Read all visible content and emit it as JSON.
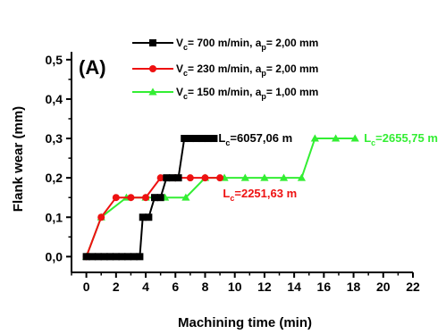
{
  "chart_data": {
    "type": "line",
    "panel_label": "(A)",
    "xlabel": "Machining time (min)",
    "ylabel": "Flank wear (mm)",
    "xlim": [
      -1,
      22
    ],
    "ylim": [
      -0.04,
      0.52
    ],
    "x_ticks": [
      "0",
      "2",
      "4",
      "6",
      "8",
      "10",
      "12",
      "14",
      "16",
      "18",
      "20",
      "22"
    ],
    "y_ticks": [
      "0,0",
      "0,1",
      "0,2",
      "0,3",
      "0,4",
      "0,5"
    ],
    "grid": false,
    "legend_position": "top-left",
    "series": [
      {
        "legend": {
          "v": "V",
          "v_sub": "c",
          "v_rest": "= 700 m/min, a",
          "a_sub": "p",
          "a_rest": "= 2,00 mm"
        },
        "color": "#000000",
        "marker": "square",
        "x": [
          0,
          0.4,
          0.8,
          1.2,
          1.6,
          2.0,
          2.4,
          2.8,
          3.2,
          3.6,
          3.8,
          4.2,
          4.6,
          5.0,
          5.4,
          5.8,
          6.2,
          6.6,
          7.0,
          7.4,
          7.8,
          8.2,
          8.6
        ],
        "y": [
          0,
          0,
          0,
          0,
          0,
          0,
          0,
          0,
          0,
          0,
          0.1,
          0.1,
          0.15,
          0.15,
          0.2,
          0.2,
          0.2,
          0.3,
          0.3,
          0.3,
          0.3,
          0.3,
          0.3
        ],
        "annotation": {
          "main": "L",
          "sub": "c",
          "rest": "=6057,06 m",
          "x": 8.9,
          "y": 0.3
        }
      },
      {
        "legend": {
          "v": "V",
          "v_sub": "c",
          "v_rest": "= 230 m/min, a",
          "a_sub": "p",
          "a_rest": "= 2,00 mm"
        },
        "color": "#ee1111",
        "marker": "circle",
        "x": [
          0,
          1.0,
          2.0,
          3.0,
          4.0,
          5.0,
          6.0,
          7.0,
          8.0,
          9.0
        ],
        "y": [
          0,
          0.1,
          0.15,
          0.15,
          0.15,
          0.2,
          0.2,
          0.2,
          0.2,
          0.2
        ],
        "annotation": {
          "main": "L",
          "sub": "c",
          "rest": "=2251,63 m",
          "x": 9.2,
          "y": 0.16
        }
      },
      {
        "legend": {
          "v": "V",
          "v_sub": "c",
          "v_rest": "= 150 m/min, a",
          "a_sub": "p",
          "a_rest": "= 1,00 mm"
        },
        "color": "#33ee33",
        "marker": "triangle",
        "x": [
          0,
          1.0,
          2.7,
          4.0,
          5.3,
          6.7,
          8.0,
          9.3,
          10.7,
          12.0,
          13.3,
          14.5,
          15.4,
          16.8,
          18.1
        ],
        "y": [
          0,
          0.1,
          0.15,
          0.15,
          0.15,
          0.15,
          0.2,
          0.2,
          0.2,
          0.2,
          0.2,
          0.2,
          0.3,
          0.3,
          0.3
        ],
        "annotation": {
          "main": "L",
          "sub": "c",
          "rest": "=2655,75 m",
          "x": 18.7,
          "y": 0.3
        }
      }
    ]
  }
}
